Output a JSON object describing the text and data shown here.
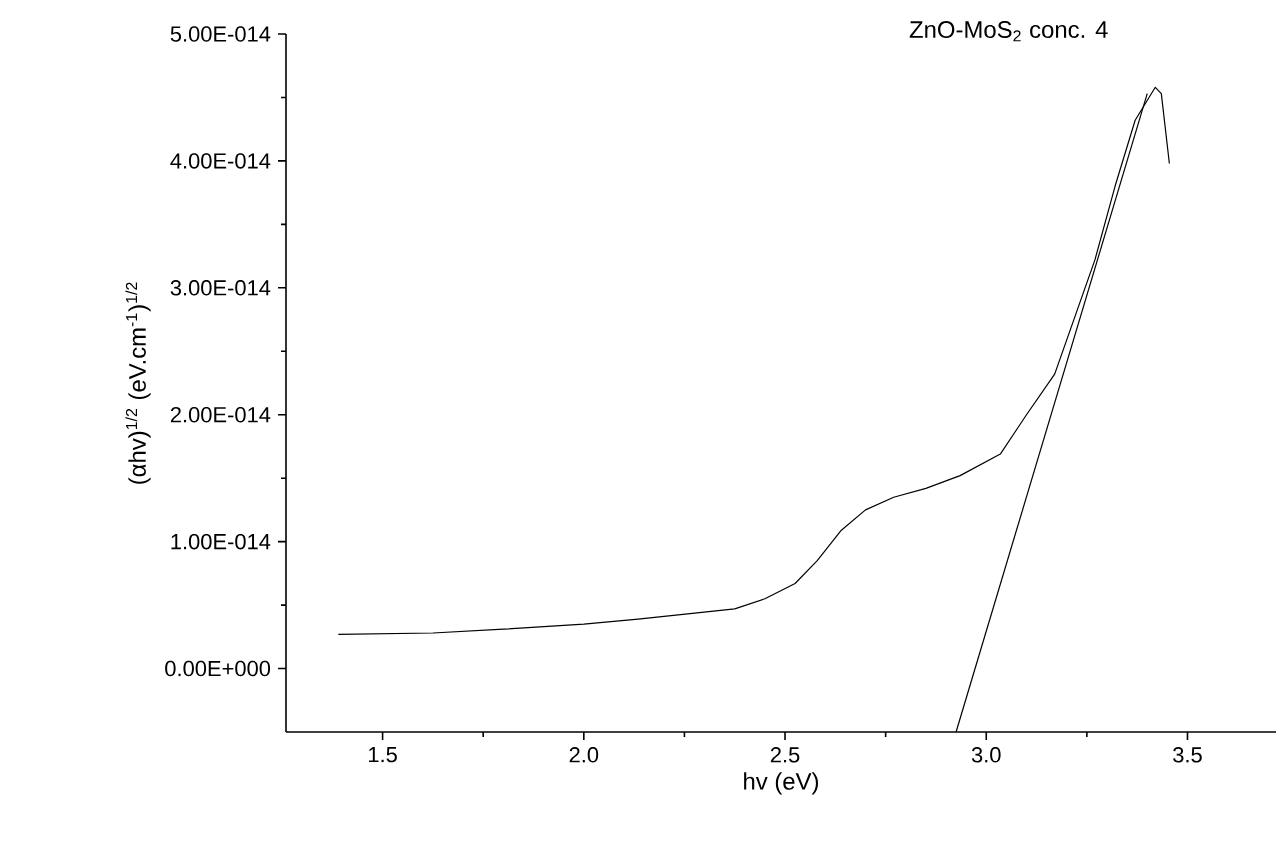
{
  "chart_data": {
    "type": "line",
    "title": "ZnO-MoS$_{2}$ conc. 4",
    "xlabel": "hv (eV)",
    "ylabel": "(αhv)$^{1/2}$ (eV.cm$^{-1}$)$^{1/2}$",
    "xlim": [
      1.26,
      3.72
    ],
    "ylim": [
      -5e-15,
      5e-14
    ],
    "xticks": [
      {
        "value": 1.5,
        "label": "1.5"
      },
      {
        "value": 2,
        "label": "2.0"
      },
      {
        "value": 2.5,
        "label": "2.5"
      },
      {
        "value": 3,
        "label": "3.0"
      },
      {
        "value": 3.5,
        "label": "3.5"
      }
    ],
    "yticks": [
      {
        "value": 0,
        "label": "0.00E+000"
      },
      {
        "value": 1e-14,
        "label": "1.00E-014"
      },
      {
        "value": 2e-14,
        "label": "2.00E-014"
      },
      {
        "value": 3e-14,
        "label": "3.00E-014"
      },
      {
        "value": 4e-14,
        "label": "4.00E-014"
      },
      {
        "value": 5e-14,
        "label": "5.00E-014"
      }
    ],
    "marker": "none",
    "line_style": "solid",
    "series": [
      {
        "color": "#000000",
        "x": [
          1.39,
          1.625,
          1.8,
          2.0,
          2.135,
          2.375,
          2.45,
          2.525,
          2.58,
          2.64,
          2.7,
          2.77,
          2.85,
          2.935,
          3.035,
          3.1,
          3.17,
          3.27,
          3.32,
          3.37,
          3.42,
          3.435,
          3.455
        ],
        "values": [
          2.7e-15,
          2.8e-15,
          3.1e-15,
          3.5e-15,
          3.9e-15,
          4.7e-15,
          5.5e-15,
          6.7e-15,
          8.5e-15,
          1.09e-14,
          1.25e-14,
          1.35e-14,
          1.42e-14,
          1.52e-14,
          1.69e-14,
          2e-14,
          2.32e-14,
          3.22e-14,
          3.8e-14,
          4.32e-14,
          4.58e-14,
          4.53e-14,
          3.98e-14
        ]
      },
      {
        "color": "#000000",
        "x": [
          2.925,
          3.4
        ],
        "values": [
          -5e-15,
          4.53e-14
        ]
      }
    ]
  }
}
